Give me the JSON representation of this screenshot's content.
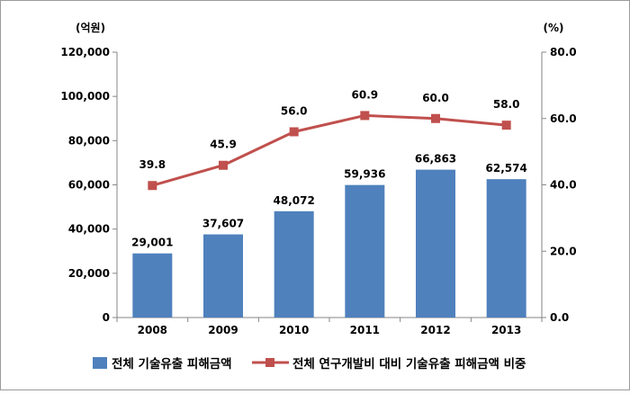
{
  "chart_data": {
    "type": "bar+line",
    "categories": [
      "2008",
      "2009",
      "2010",
      "2011",
      "2012",
      "2013"
    ],
    "series": [
      {
        "name": "전체 기술유출 피해금액",
        "kind": "bar",
        "axis": "left",
        "values": [
          29001,
          37607,
          48072,
          59936,
          66863,
          62574
        ],
        "labels": [
          "29,001",
          "37,607",
          "48,072",
          "59,936",
          "66,863",
          "62,574"
        ],
        "color": "#4f81bd"
      },
      {
        "name": "전체 연구개발비 대비 기술유출 피해금액 비중",
        "kind": "line",
        "axis": "right",
        "values": [
          39.8,
          45.9,
          56.0,
          60.9,
          60.0,
          58.0
        ],
        "labels": [
          "39.8",
          "45.9",
          "56.0",
          "60.9",
          "60.0",
          "58.0"
        ],
        "color": "#c0504d"
      }
    ],
    "left_axis": {
      "unit": "(억원)",
      "range": [
        0,
        120000
      ],
      "ticks": [
        "0",
        "20,000",
        "40,000",
        "60,000",
        "80,000",
        "100,000",
        "120,000"
      ]
    },
    "right_axis": {
      "unit": "(%)",
      "range": [
        0,
        80
      ],
      "ticks": [
        "0.0",
        "20.0",
        "40.0",
        "60.0",
        "80.0"
      ]
    },
    "grid": false,
    "legend_position": "bottom"
  }
}
